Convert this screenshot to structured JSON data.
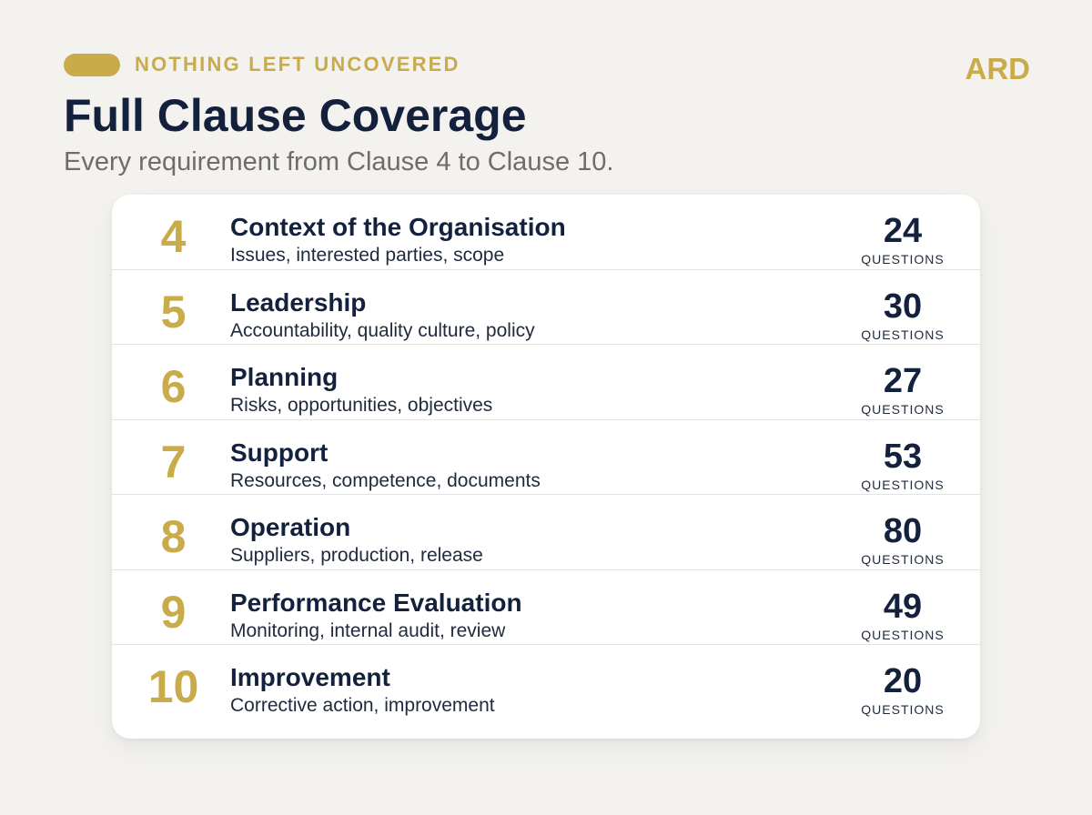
{
  "header": {
    "eyebrow": "NOTHING LEFT UNCOVERED",
    "brand": "ARD",
    "title": "Full Clause Coverage",
    "subtitle": "Every requirement from Clause 4 to Clause 10."
  },
  "count_label": "QUESTIONS",
  "clauses": [
    {
      "number": "4",
      "name": "Context of the Organisation",
      "description": "Issues, interested parties, scope",
      "questions": "24"
    },
    {
      "number": "5",
      "name": "Leadership",
      "description": "Accountability, quality culture, policy",
      "questions": "30"
    },
    {
      "number": "6",
      "name": "Planning",
      "description": "Risks, opportunities, objectives",
      "questions": "27"
    },
    {
      "number": "7",
      "name": "Support",
      "description": "Resources, competence, documents",
      "questions": "53"
    },
    {
      "number": "8",
      "name": "Operation",
      "description": "Suppliers, production, release",
      "questions": "80"
    },
    {
      "number": "9",
      "name": "Performance Evaluation",
      "description": "Monitoring, internal audit, review",
      "questions": "49"
    },
    {
      "number": "10",
      "name": "Improvement",
      "description": "Corrective action, improvement",
      "questions": "20"
    }
  ],
  "colors": {
    "accent_gold": "#c9ab4a",
    "navy": "#14213d",
    "background": "#f3f2ee"
  }
}
